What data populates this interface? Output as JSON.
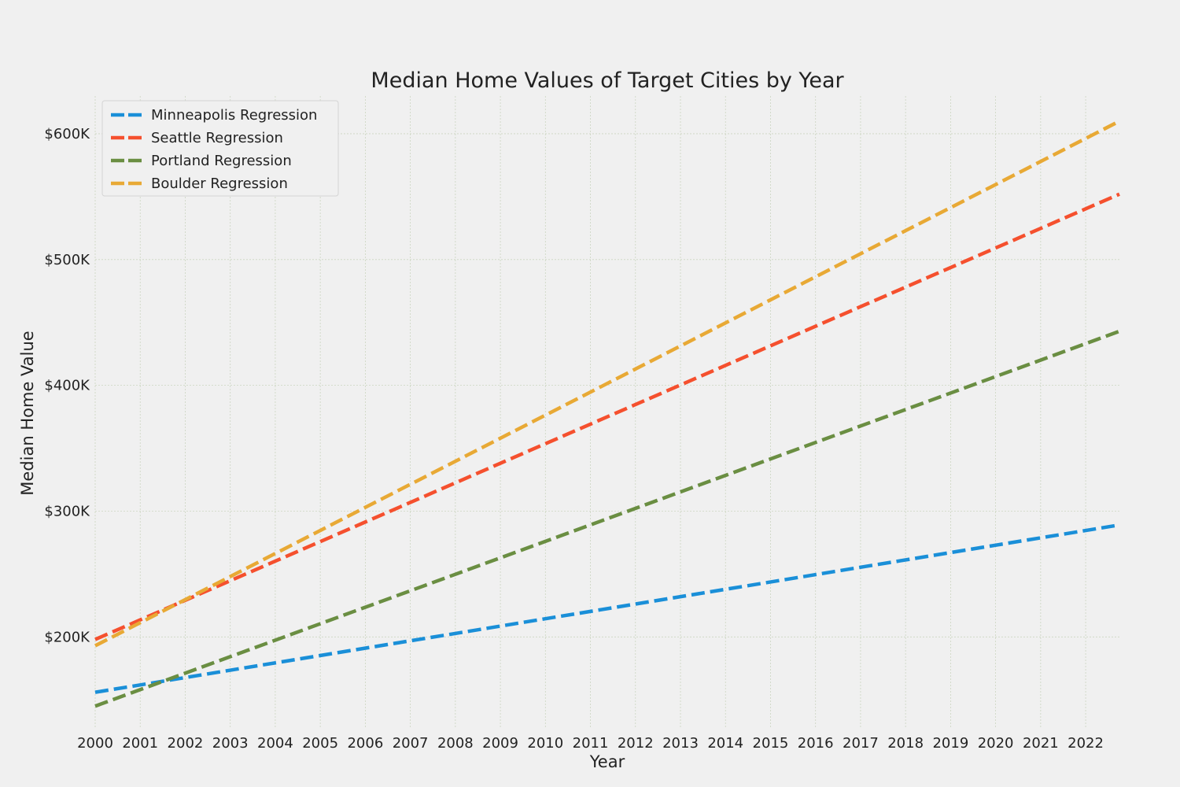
{
  "chart_data": {
    "type": "line",
    "title": "Median Home Values of Target Cities by Year",
    "xlabel": "Year",
    "ylabel": "Median Home Value",
    "x_ticks": [
      "2000",
      "2001",
      "2002",
      "2003",
      "2004",
      "2005",
      "2006",
      "2007",
      "2008",
      "2009",
      "2010",
      "2011",
      "2012",
      "2013",
      "2014",
      "2015",
      "2016",
      "2017",
      "2018",
      "2019",
      "2020",
      "2021",
      "2022"
    ],
    "y_ticks": [
      "$200K",
      "$300K",
      "$400K",
      "$500K",
      "$600K"
    ],
    "y_tick_values": [
      200000,
      300000,
      400000,
      500000,
      600000
    ],
    "xlim": [
      2000,
      2022.75
    ],
    "ylim": [
      127000,
      630000
    ],
    "grid": true,
    "legend_position": "top-left",
    "line_style": "dashed",
    "series": [
      {
        "name": "Minneapolis Regression",
        "color": "#1a8fd8",
        "x": [
          2000,
          2022.75
        ],
        "y": [
          156000,
          289000
        ]
      },
      {
        "name": "Seattle Regression",
        "color": "#f5502e",
        "x": [
          2000,
          2022.75
        ],
        "y": [
          198000,
          552000
        ]
      },
      {
        "name": "Portland Regression",
        "color": "#6a8e42",
        "x": [
          2000,
          2022.75
        ],
        "y": [
          145000,
          443000
        ]
      },
      {
        "name": "Boulder Regression",
        "color": "#e8a935",
        "x": [
          2000,
          2022.75
        ],
        "y": [
          193000,
          610000
        ]
      }
    ]
  }
}
